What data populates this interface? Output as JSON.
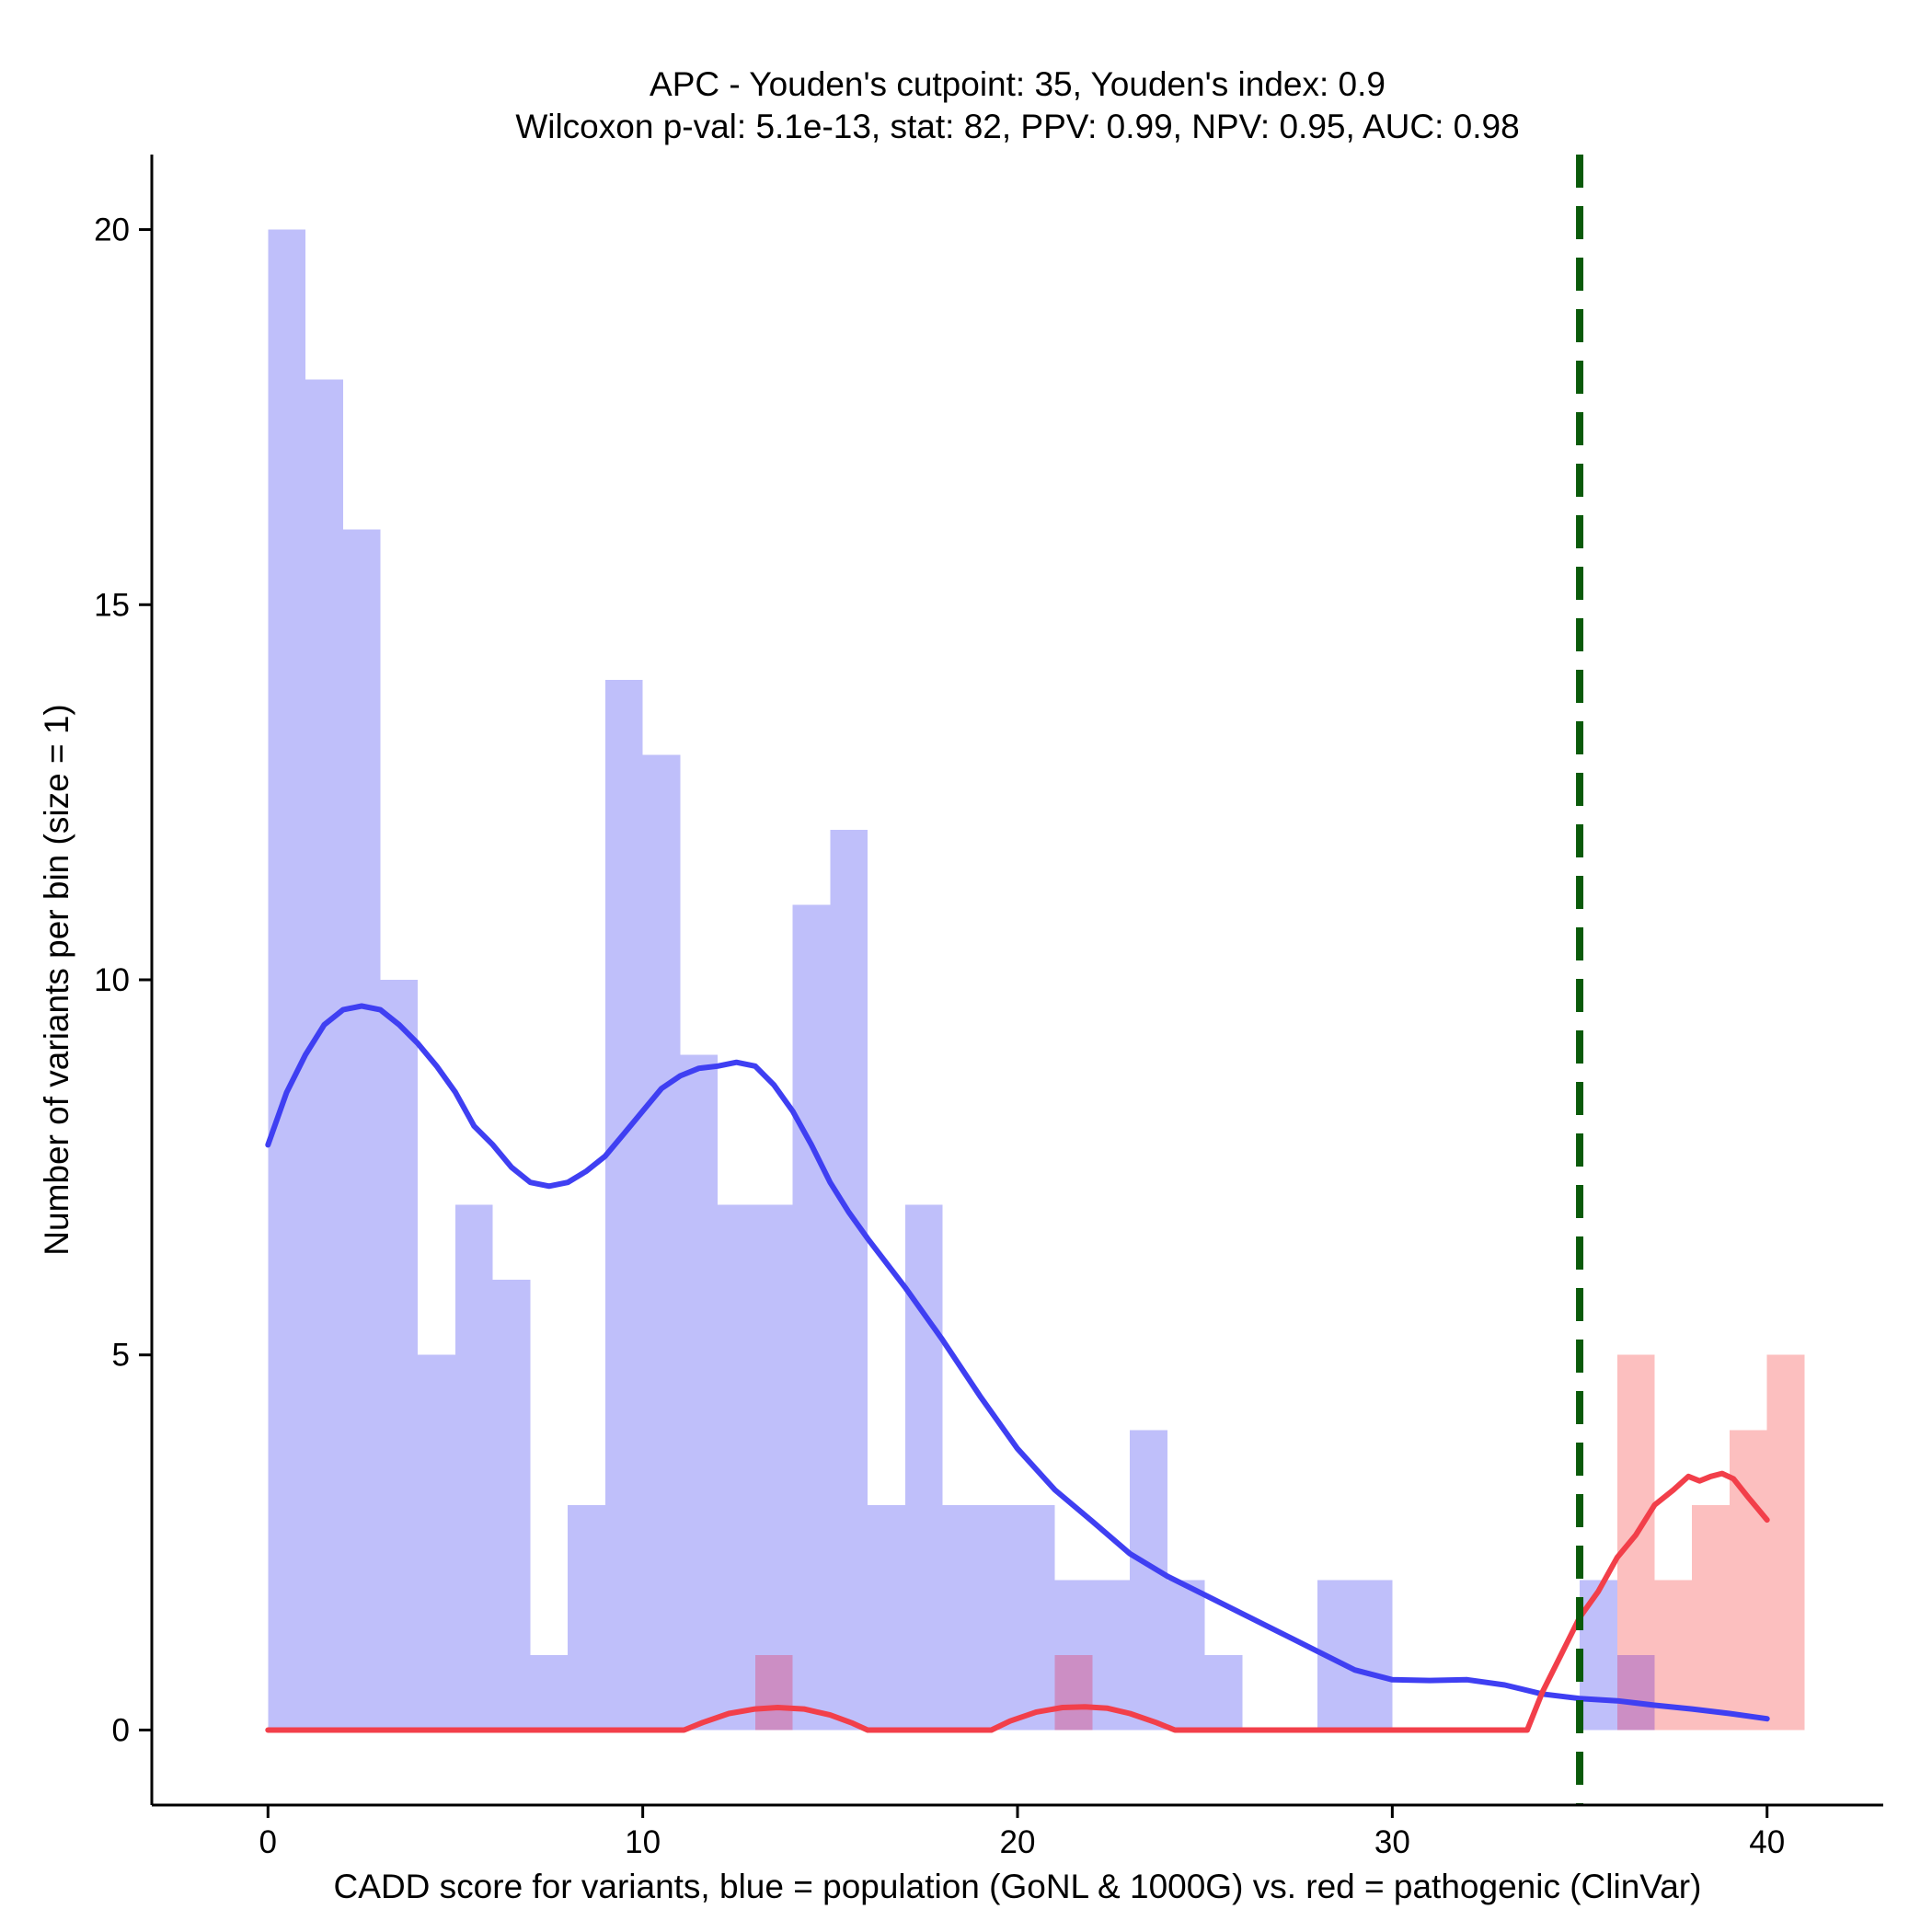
{
  "chart_data": {
    "type": "histogram",
    "title": "APC - Youden's cutpoint: 35, Youden's index: 0.9",
    "subtitle": "Wilcoxon p-val: 5.1e-13, stat: 82, PPV: 0.99, NPV: 0.95, AUC: 0.98",
    "xlabel": "CADD score for variants, blue = population (GoNL & 1000G) vs. red = pathogenic (ClinVar)",
    "ylabel": "Number of variants per bin (size = 1)",
    "xlim": [
      -3.1,
      43.1
    ],
    "ylim": [
      -1.0,
      21.0
    ],
    "x_ticks": [
      0,
      10,
      20,
      30,
      40
    ],
    "y_ticks": [
      0,
      5,
      10,
      15,
      20
    ],
    "bin_width": 1,
    "cutpoint": 35,
    "series": [
      {
        "name": "population (GoNL & 1000G)",
        "color": "#bfbffa",
        "bins": [
          {
            "x0": 0,
            "count": 20
          },
          {
            "x0": 1,
            "count": 18
          },
          {
            "x0": 2,
            "count": 16
          },
          {
            "x0": 3,
            "count": 10
          },
          {
            "x0": 4,
            "count": 5
          },
          {
            "x0": 5,
            "count": 7
          },
          {
            "x0": 6,
            "count": 6
          },
          {
            "x0": 7,
            "count": 1
          },
          {
            "x0": 8,
            "count": 3
          },
          {
            "x0": 9,
            "count": 14
          },
          {
            "x0": 10,
            "count": 13
          },
          {
            "x0": 11,
            "count": 9
          },
          {
            "x0": 12,
            "count": 7
          },
          {
            "x0": 13,
            "count": 7
          },
          {
            "x0": 14,
            "count": 11
          },
          {
            "x0": 15,
            "count": 12
          },
          {
            "x0": 16,
            "count": 3
          },
          {
            "x0": 17,
            "count": 7
          },
          {
            "x0": 18,
            "count": 3
          },
          {
            "x0": 19,
            "count": 3
          },
          {
            "x0": 20,
            "count": 3
          },
          {
            "x0": 21,
            "count": 2
          },
          {
            "x0": 22,
            "count": 2
          },
          {
            "x0": 23,
            "count": 4
          },
          {
            "x0": 24,
            "count": 2
          },
          {
            "x0": 25,
            "count": 1
          },
          {
            "x0": 28,
            "count": 2
          },
          {
            "x0": 29,
            "count": 2
          },
          {
            "x0": 35,
            "count": 2
          },
          {
            "x0": 36,
            "count": 1
          }
        ]
      },
      {
        "name": "pathogenic (ClinVar)",
        "color": "#fcbfbf",
        "bins": [
          {
            "x0": 13,
            "count": 1
          },
          {
            "x0": 21,
            "count": 1
          },
          {
            "x0": 36,
            "count": 5
          },
          {
            "x0": 37,
            "count": 2
          },
          {
            "x0": 38,
            "count": 3
          },
          {
            "x0": 39,
            "count": 4
          },
          {
            "x0": 40,
            "count": 5
          }
        ]
      }
    ],
    "overlap_color": "#cc8ec4",
    "density_curves": [
      {
        "name": "population density",
        "color": "#3f3ff2",
        "points": [
          [
            0,
            7.8
          ],
          [
            0.5,
            8.5
          ],
          [
            1,
            9.0
          ],
          [
            1.5,
            9.4
          ],
          [
            2,
            9.6
          ],
          [
            2.5,
            9.65
          ],
          [
            3,
            9.6
          ],
          [
            3.5,
            9.4
          ],
          [
            4,
            9.15
          ],
          [
            4.5,
            8.85
          ],
          [
            5,
            8.5
          ],
          [
            5.5,
            8.05
          ],
          [
            6,
            7.8
          ],
          [
            6.5,
            7.5
          ],
          [
            7,
            7.3
          ],
          [
            7.5,
            7.25
          ],
          [
            8,
            7.3
          ],
          [
            8.5,
            7.45
          ],
          [
            9,
            7.65
          ],
          [
            9.5,
            7.95
          ],
          [
            10,
            8.25
          ],
          [
            10.5,
            8.55
          ],
          [
            11,
            8.72
          ],
          [
            11.5,
            8.82
          ],
          [
            12,
            8.85
          ],
          [
            12.5,
            8.9
          ],
          [
            13,
            8.85
          ],
          [
            13.5,
            8.6
          ],
          [
            14,
            8.25
          ],
          [
            14.5,
            7.8
          ],
          [
            15,
            7.3
          ],
          [
            15.5,
            6.9
          ],
          [
            16,
            6.55
          ],
          [
            17,
            5.9
          ],
          [
            18,
            5.2
          ],
          [
            19,
            4.45
          ],
          [
            20,
            3.75
          ],
          [
            21,
            3.2
          ],
          [
            22,
            2.78
          ],
          [
            23,
            2.35
          ],
          [
            24,
            2.05
          ],
          [
            25,
            1.8
          ],
          [
            26,
            1.55
          ],
          [
            27,
            1.3
          ],
          [
            28,
            1.05
          ],
          [
            29,
            0.8
          ],
          [
            30,
            0.67
          ],
          [
            31,
            0.66
          ],
          [
            32,
            0.67
          ],
          [
            33,
            0.6
          ],
          [
            34,
            0.48
          ],
          [
            35,
            0.42
          ],
          [
            36,
            0.39
          ],
          [
            37,
            0.33
          ],
          [
            38,
            0.28
          ],
          [
            39,
            0.22
          ],
          [
            40,
            0.15
          ]
        ]
      },
      {
        "name": "pathogenic density",
        "color": "#f23f4a",
        "points": [
          [
            0,
            0
          ],
          [
            11.1,
            0
          ],
          [
            11.6,
            0.1
          ],
          [
            12.3,
            0.22
          ],
          [
            13.0,
            0.28
          ],
          [
            13.6,
            0.3
          ],
          [
            14.3,
            0.28
          ],
          [
            15.0,
            0.2
          ],
          [
            15.6,
            0.09
          ],
          [
            16.0,
            0
          ],
          [
            19.3,
            0
          ],
          [
            19.8,
            0.12
          ],
          [
            20.5,
            0.24
          ],
          [
            21.2,
            0.3
          ],
          [
            21.8,
            0.31
          ],
          [
            22.4,
            0.29
          ],
          [
            23.0,
            0.22
          ],
          [
            23.7,
            0.1
          ],
          [
            24.2,
            0
          ],
          [
            33.6,
            0
          ],
          [
            34.0,
            0.5
          ],
          [
            34.5,
            1.0
          ],
          [
            35.0,
            1.5
          ],
          [
            35.5,
            1.85
          ],
          [
            36.0,
            2.3
          ],
          [
            36.5,
            2.6
          ],
          [
            37.0,
            3.0
          ],
          [
            37.5,
            3.2
          ],
          [
            37.9,
            3.38
          ],
          [
            38.2,
            3.32
          ],
          [
            38.5,
            3.38
          ],
          [
            38.8,
            3.42
          ],
          [
            39.1,
            3.35
          ],
          [
            39.5,
            3.1
          ],
          [
            40.0,
            2.8
          ]
        ]
      }
    ]
  }
}
